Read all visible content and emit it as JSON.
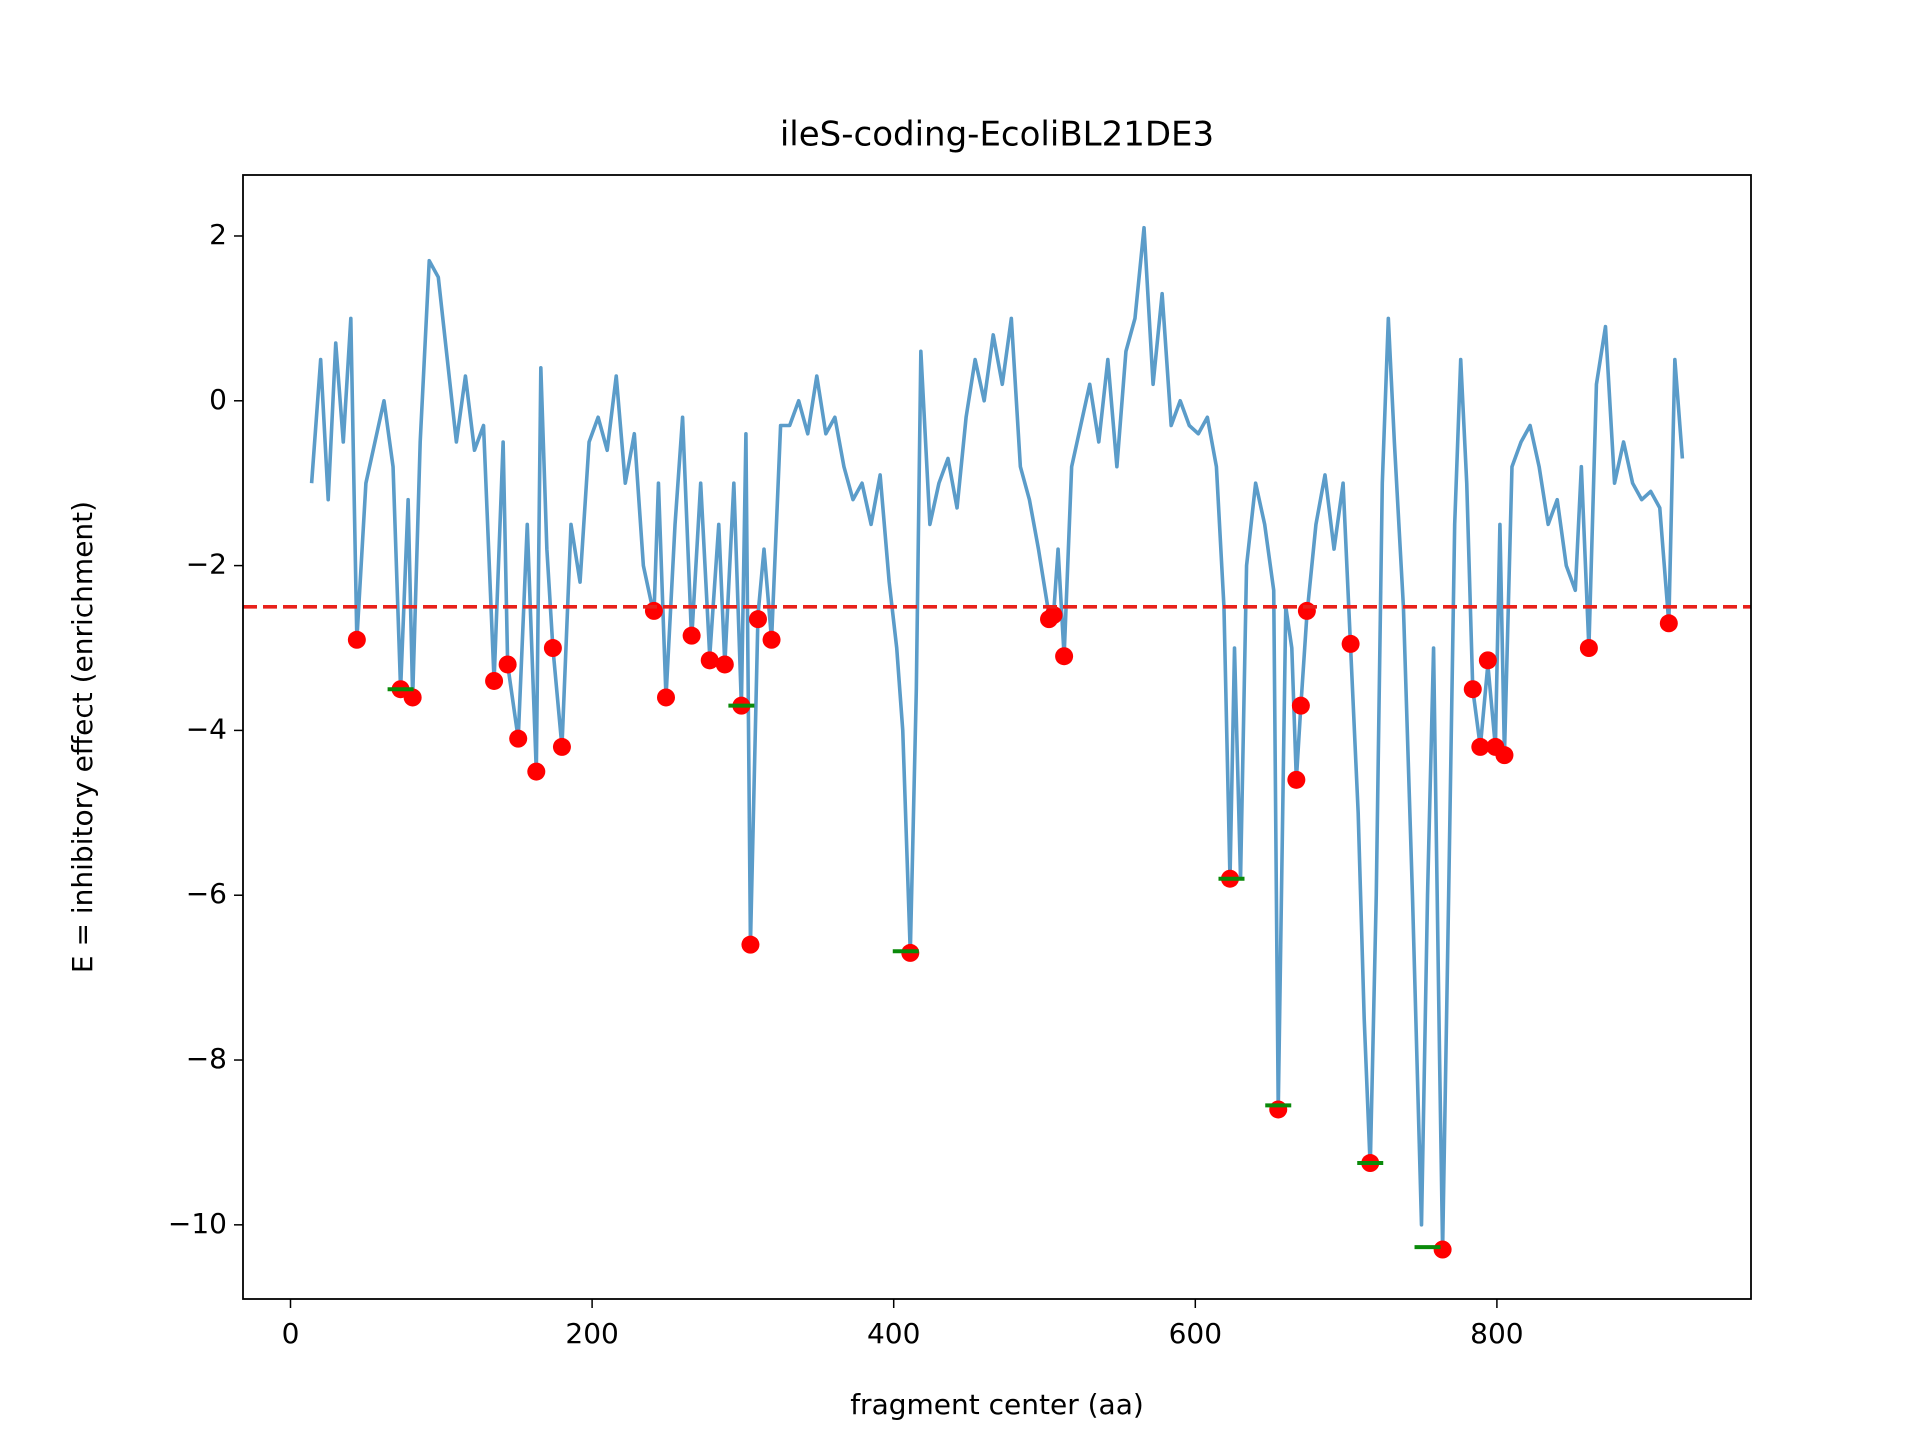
{
  "chart_data": {
    "type": "line",
    "title": "ileS-coding-EcoliBL21DE3",
    "xlabel": "fragment center (aa)",
    "ylabel": "E = inhibitory effect (enrichment)",
    "xlim": [
      -31.5,
      968.5
    ],
    "ylim": [
      -10.9,
      2.74
    ],
    "xticks": [
      0,
      200,
      400,
      600,
      800
    ],
    "yticks": [
      {
        "value": 2,
        "label": "2"
      },
      {
        "value": 0,
        "label": "0"
      },
      {
        "value": -2,
        "label": "−2"
      },
      {
        "value": -4,
        "label": "−4"
      },
      {
        "value": -6,
        "label": "−6"
      },
      {
        "value": -8,
        "label": "−8"
      },
      {
        "value": -10,
        "label": "−10"
      }
    ],
    "hlines": [
      {
        "y": -2.5,
        "color": "#e8211b",
        "style": "dashed"
      }
    ],
    "series": [
      {
        "marker": "line",
        "color": "#5b9cc9",
        "x": [
          14,
          20,
          25,
          30,
          35,
          40,
          44,
          50,
          56,
          62,
          68,
          73,
          78,
          81,
          86,
          92,
          98,
          104,
          110,
          116,
          122,
          128,
          135,
          141,
          144,
          151,
          157,
          163,
          166,
          170,
          174,
          180,
          186,
          192,
          198,
          204,
          210,
          216,
          222,
          228,
          234,
          241,
          244,
          249,
          255,
          260,
          266,
          272,
          278,
          284,
          288,
          294,
          299,
          302,
          305,
          310,
          314,
          319,
          325,
          331,
          337,
          343,
          349,
          355,
          361,
          367,
          373,
          379,
          385,
          391,
          397,
          402,
          406,
          411,
          415,
          418,
          424,
          430,
          436,
          442,
          448,
          454,
          460,
          466,
          472,
          478,
          484,
          490,
          496,
          503,
          506,
          509,
          513,
          518,
          524,
          530,
          536,
          542,
          548,
          554,
          560,
          566,
          572,
          578,
          584,
          590,
          596,
          602,
          608,
          614,
          619,
          623,
          626,
          630,
          634,
          640,
          646,
          652,
          655,
          660,
          664,
          667,
          670,
          674,
          680,
          686,
          692,
          698,
          703,
          708,
          712,
          716,
          720,
          724,
          728,
          732,
          738,
          744,
          750,
          754,
          758,
          762,
          764,
          768,
          772,
          776,
          780,
          784,
          789,
          794,
          799,
          802,
          805,
          810,
          816,
          822,
          828,
          834,
          840,
          846,
          852,
          856,
          861,
          866,
          872,
          878,
          884,
          890,
          896,
          902,
          908,
          914,
          918,
          923
        ],
        "values": [
          -1.0,
          0.5,
          -1.2,
          0.7,
          -0.5,
          1.0,
          -2.9,
          -1.0,
          -0.5,
          0.0,
          -0.8,
          -3.5,
          -1.2,
          -3.6,
          -0.5,
          1.7,
          1.5,
          0.5,
          -0.5,
          0.3,
          -0.6,
          -0.3,
          -3.4,
          -0.5,
          -3.2,
          -4.1,
          -1.5,
          -4.5,
          0.4,
          -1.8,
          -3.0,
          -4.2,
          -1.5,
          -2.2,
          -0.5,
          -0.2,
          -0.6,
          0.3,
          -1.0,
          -0.4,
          -2.0,
          -2.6,
          -1.0,
          -3.6,
          -1.5,
          -0.2,
          -2.9,
          -1.0,
          -3.1,
          -1.5,
          -3.2,
          -1.0,
          -3.7,
          -0.4,
          -6.6,
          -2.6,
          -1.8,
          -2.9,
          -0.3,
          -0.3,
          0.0,
          -0.4,
          0.3,
          -0.4,
          -0.2,
          -0.8,
          -1.2,
          -1.0,
          -1.5,
          -0.9,
          -2.2,
          -3.0,
          -4.0,
          -6.7,
          -3.5,
          0.6,
          -1.5,
          -1.0,
          -0.7,
          -1.3,
          -0.2,
          0.5,
          0.0,
          0.8,
          0.2,
          1.0,
          -0.8,
          -1.2,
          -1.8,
          -2.6,
          -2.6,
          -1.8,
          -3.1,
          -0.8,
          -0.3,
          0.2,
          -0.5,
          0.5,
          -0.8,
          0.6,
          1.0,
          2.1,
          0.2,
          1.3,
          -0.3,
          0.0,
          -0.3,
          -0.4,
          -0.2,
          -0.8,
          -2.5,
          -5.8,
          -3.0,
          -5.8,
          -2.0,
          -1.0,
          -1.5,
          -2.3,
          -8.6,
          -2.5,
          -3.0,
          -4.6,
          -3.7,
          -2.6,
          -1.5,
          -0.9,
          -1.8,
          -1.0,
          -3.0,
          -5.0,
          -7.5,
          -9.3,
          -6.0,
          -1.0,
          1.0,
          -0.5,
          -2.5,
          -6.0,
          -10.0,
          -6.0,
          -3.0,
          -8.0,
          -10.3,
          -6.0,
          -1.5,
          0.5,
          -1.0,
          -3.5,
          -4.2,
          -3.2,
          -4.2,
          -1.5,
          -4.3,
          -0.8,
          -0.5,
          -0.3,
          -0.8,
          -1.5,
          -1.2,
          -2.0,
          -2.3,
          -0.8,
          -3.0,
          0.2,
          0.9,
          -1.0,
          -0.5,
          -1.0,
          -1.2,
          -1.1,
          -1.3,
          -2.7,
          0.5,
          -0.7
        ]
      },
      {
        "marker": "o",
        "color": "#ff0000",
        "x": [
          44,
          73,
          81,
          135,
          144,
          151,
          163,
          174,
          180,
          241,
          249,
          266,
          278,
          288,
          299,
          305,
          310,
          319,
          411,
          503,
          506,
          513,
          623,
          655,
          667,
          670,
          674,
          703,
          716,
          764,
          784,
          789,
          794,
          799,
          805,
          861,
          914
        ],
        "values": [
          -2.9,
          -3.5,
          -3.6,
          -3.4,
          -3.2,
          -4.1,
          -4.5,
          -3.0,
          -4.2,
          -2.55,
          -3.6,
          -2.85,
          -3.15,
          -3.2,
          -3.7,
          -6.6,
          -2.65,
          -2.9,
          -6.7,
          -2.65,
          -2.6,
          -3.1,
          -5.8,
          -8.6,
          -4.6,
          -3.7,
          -2.55,
          -2.95,
          -9.25,
          -10.3,
          -3.5,
          -4.2,
          -3.15,
          -4.2,
          -4.3,
          -3.0,
          -2.7
        ]
      },
      {
        "marker": "_",
        "color": "#0a8a0a",
        "x": [
          73,
          299,
          408,
          624,
          655,
          716,
          754
        ],
        "values": [
          -3.5,
          -3.7,
          -6.68,
          -5.8,
          -8.55,
          -9.25,
          -10.27
        ]
      }
    ]
  }
}
